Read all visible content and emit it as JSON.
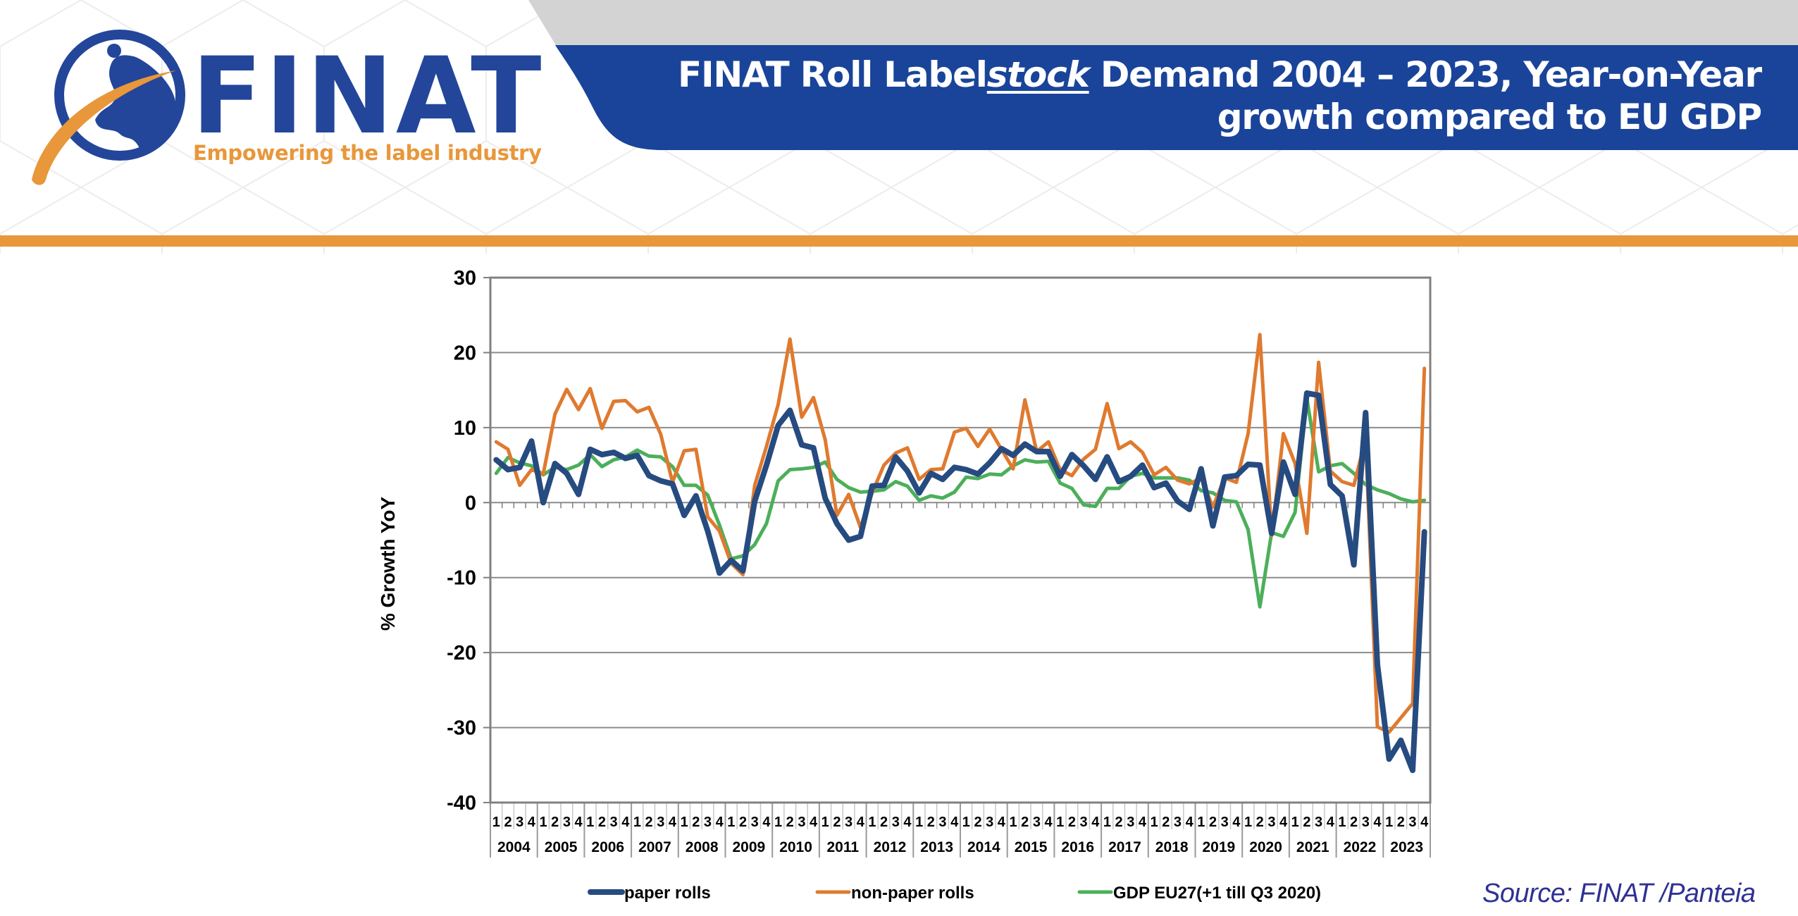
{
  "logo": {
    "wordmark": "FINAT",
    "tagline": "Empowering the label industry"
  },
  "header": {
    "title_line1_pre": "FINAT Roll Label",
    "title_line1_em": "stock",
    "title_line1_post": " Demand 2004 – 2023, Year-on-Year",
    "title_line2": "growth compared to EU GDP"
  },
  "colors": {
    "brand_blue": "#23469A",
    "banner_blue": "#1A449A",
    "banner_grey": "#D3D3D3",
    "accent_orange": "#E8973A",
    "source_text": "#2E3192"
  },
  "source": "Source: FINAT /Panteia",
  "chart_data": {
    "type": "line",
    "title": "FINAT Roll Labelstock Demand 2004 – 2023, Year-on-Year growth compared to EU GDP",
    "xlabel": "",
    "ylabel": "% Growth YoY",
    "ylim": [
      -40,
      30
    ],
    "yticks": [
      30,
      20,
      10,
      0,
      -10,
      -20,
      -30,
      -40
    ],
    "grid": true,
    "legend_position": "bottom",
    "years": [
      "2004",
      "2005",
      "2006",
      "2007",
      "2008",
      "2009",
      "2010",
      "2011",
      "2012",
      "2013",
      "2014",
      "2015",
      "2016",
      "2017",
      "2018",
      "2019",
      "2020",
      "2021",
      "2022",
      "2023"
    ],
    "quarters": [
      "1",
      "2",
      "3",
      "4"
    ],
    "series": [
      {
        "name": "paper rolls",
        "color": "#264B80",
        "values": [
          5.7,
          4.4,
          4.7,
          8.2,
          0.0,
          5.2,
          3.9,
          1.1,
          7.1,
          6.4,
          6.7,
          5.9,
          6.3,
          3.6,
          2.9,
          2.5,
          -1.7,
          0.9,
          -3.8,
          -9.4,
          -7.7,
          -9.1,
          0.2,
          5.0,
          10.3,
          12.3,
          7.7,
          7.3,
          0.6,
          -2.8,
          -5.0,
          -4.5,
          2.2,
          2.3,
          6.1,
          4.2,
          1.3,
          3.9,
          3.1,
          4.7,
          4.4,
          3.8,
          5.3,
          7.2,
          6.3,
          7.8,
          6.8,
          6.8,
          3.5,
          6.4,
          4.9,
          3.1,
          6.1,
          2.8,
          3.5,
          5.0,
          2.0,
          2.6,
          0.2,
          -0.9,
          4.5,
          -3.1,
          3.4,
          3.6,
          5.1,
          5.0,
          -4.1,
          5.4,
          1.1,
          14.6,
          14.3,
          2.4,
          0.9,
          -8.3,
          12.0,
          -21.6,
          -34.2,
          -31.7,
          -35.7,
          -3.9
        ]
      },
      {
        "name": "non-paper rolls",
        "color": "#DF7A2F",
        "values": [
          8.1,
          7.1,
          2.3,
          4.4,
          3.8,
          11.8,
          15.1,
          12.4,
          15.2,
          9.9,
          13.5,
          13.6,
          12.1,
          12.7,
          9.1,
          2.7,
          6.9,
          7.1,
          -1.9,
          -3.8,
          -8.1,
          -9.6,
          2.3,
          7.5,
          13.1,
          21.8,
          11.4,
          14.0,
          8.4,
          -1.7,
          1.1,
          -3.3,
          1.3,
          5.0,
          6.6,
          7.3,
          3.1,
          4.4,
          4.5,
          9.4,
          9.9,
          7.5,
          9.8,
          7.1,
          4.5,
          13.7,
          6.8,
          8.1,
          4.4,
          3.6,
          5.8,
          7.1,
          13.2,
          7.2,
          8.1,
          6.7,
          3.7,
          4.7,
          3.0,
          2.5,
          3.3,
          -0.6,
          3.3,
          2.7,
          9.2,
          22.4,
          -4.4,
          9.2,
          5.2,
          -4.1,
          18.7,
          4.2,
          2.8,
          2.3,
          8.5,
          -29.9,
          -30.6,
          -28.7,
          -26.8,
          17.9
        ]
      },
      {
        "name": "GDP EU27(+1 till Q3 2020)",
        "color": "#4CAF5A",
        "values": [
          3.9,
          6.0,
          5.3,
          4.9,
          3.7,
          4.7,
          4.4,
          5.0,
          6.4,
          4.8,
          5.7,
          6.1,
          7.0,
          6.2,
          6.1,
          4.8,
          2.3,
          2.3,
          1.0,
          -3.0,
          -7.5,
          -7.1,
          -5.6,
          -2.8,
          2.9,
          4.4,
          4.5,
          4.7,
          5.4,
          3.1,
          2.0,
          1.4,
          1.5,
          1.7,
          2.8,
          2.2,
          0.3,
          0.9,
          0.6,
          1.4,
          3.4,
          3.2,
          3.8,
          3.7,
          4.9,
          5.7,
          5.4,
          5.5,
          2.6,
          1.9,
          -0.3,
          -0.5,
          1.9,
          1.9,
          3.5,
          3.9,
          3.3,
          3.3,
          3.3,
          3.0,
          1.6,
          1.3,
          0.3,
          0.1,
          -3.6,
          -13.9,
          -4.0,
          -4.5,
          -1.3,
          13.9,
          4.1,
          4.9,
          5.2,
          3.9,
          2.4,
          1.7,
          1.2,
          0.5,
          0.1,
          0.3
        ]
      }
    ]
  }
}
